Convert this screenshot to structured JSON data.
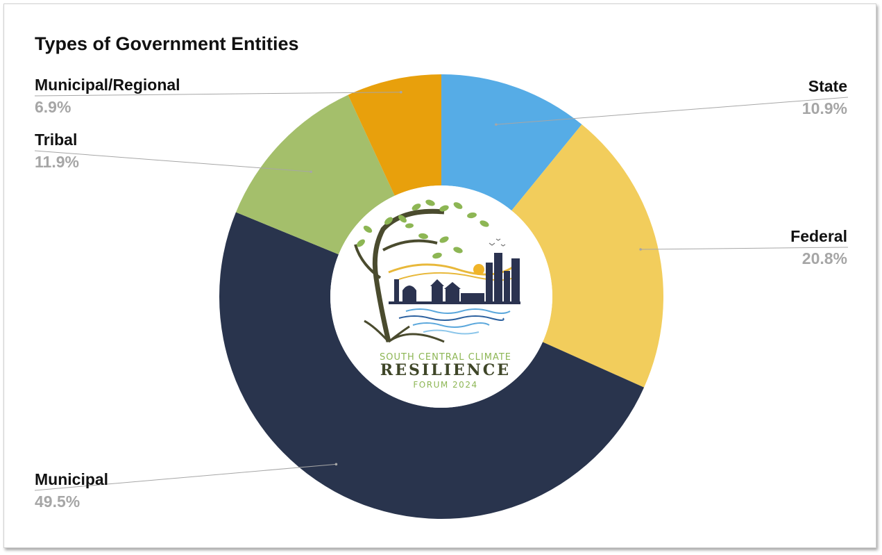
{
  "chart_data": {
    "type": "pie",
    "title": "Types of Government Entities",
    "categories": [
      "State",
      "Federal",
      "Municipal",
      "Tribal",
      "Municipal/Regional"
    ],
    "values": [
      10.9,
      20.8,
      49.5,
      11.9,
      6.9
    ],
    "value_labels": [
      "10.9%",
      "20.8%",
      "49.5%",
      "11.9%",
      "6.9%"
    ],
    "colors": [
      "#56ace6",
      "#f2cd5c",
      "#29344d",
      "#a4bf6b",
      "#e8a00c"
    ],
    "legend": "none",
    "grid": false
  },
  "logo": {
    "line1": "SOUTH CENTRAL CLIMATE",
    "line2": "RESILIENCE",
    "line3": "FORUM 2024"
  }
}
